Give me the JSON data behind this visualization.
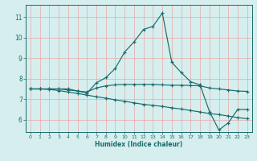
{
  "xlabel": "Humidex (Indice chaleur)",
  "bg_color": "#d6eeee",
  "line_color": "#1a6b6b",
  "grid_color": "#e8a8a8",
  "xlim": [
    -0.5,
    23.5
  ],
  "ylim": [
    5.4,
    11.6
  ],
  "yticks": [
    6,
    7,
    8,
    9,
    10,
    11
  ],
  "xticks": [
    0,
    1,
    2,
    3,
    4,
    5,
    6,
    7,
    8,
    9,
    10,
    11,
    12,
    13,
    14,
    15,
    16,
    17,
    18,
    19,
    20,
    21,
    22,
    23
  ],
  "series": [
    [
      7.5,
      7.5,
      7.5,
      7.5,
      7.5,
      7.4,
      7.3,
      7.8,
      8.05,
      8.5,
      9.3,
      9.8,
      10.4,
      10.55,
      11.2,
      8.8,
      8.3,
      7.85,
      7.7,
      6.4,
      5.5,
      5.85,
      6.5,
      6.5
    ],
    [
      7.5,
      7.5,
      7.5,
      7.5,
      7.45,
      7.4,
      7.35,
      7.55,
      7.65,
      7.7,
      7.72,
      7.72,
      7.72,
      7.72,
      7.7,
      7.68,
      7.68,
      7.67,
      7.65,
      7.55,
      7.5,
      7.45,
      7.4,
      7.38
    ],
    [
      7.5,
      7.5,
      7.48,
      7.42,
      7.35,
      7.28,
      7.2,
      7.12,
      7.05,
      6.97,
      6.9,
      6.82,
      6.75,
      6.7,
      6.65,
      6.58,
      6.52,
      6.45,
      6.38,
      6.3,
      6.25,
      6.18,
      6.1,
      6.05
    ]
  ]
}
